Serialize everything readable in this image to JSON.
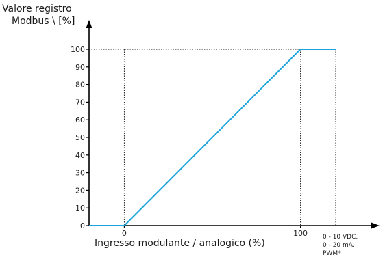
{
  "chart_data": {
    "type": "line",
    "ylabel_lines": [
      "Valore registro",
      "Modbus \\ [%]"
    ],
    "xlabel": "Ingresso modulante / analogico (%)",
    "x_note_lines": [
      "0 - 10 VDC,",
      "0 - 20 mA,",
      "PWM*"
    ],
    "y_ticks": [
      0,
      10,
      20,
      30,
      40,
      50,
      60,
      70,
      80,
      90,
      100
    ],
    "x_ticks": [
      0,
      100
    ],
    "xlim": [
      -20,
      120
    ],
    "ylim": [
      0,
      100
    ],
    "grid": false,
    "series": [
      {
        "color": "#1aa3dc",
        "x": [
          -20,
          0,
          100,
          120
        ],
        "y": [
          0,
          0,
          100,
          100
        ]
      }
    ],
    "guides": {
      "vertical_at_x": [
        0,
        100,
        120
      ],
      "horizontal_at_y": [
        100
      ]
    }
  }
}
